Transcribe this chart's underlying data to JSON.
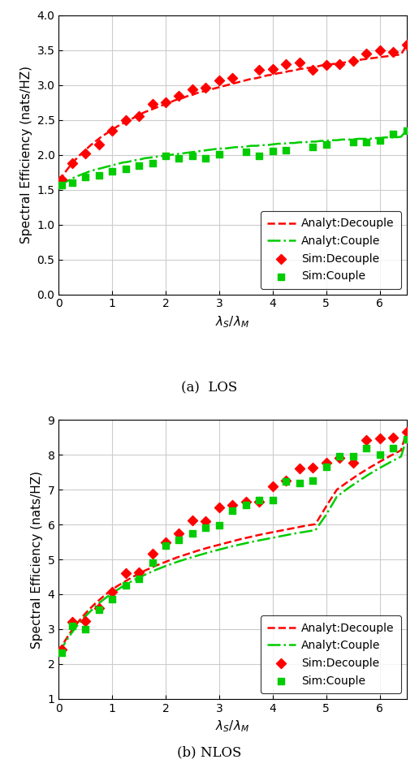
{
  "los": {
    "caption": "(a)  LOS",
    "ylabel": "Spectral Efficiency (nats/HZ)",
    "xlabel": "$\\lambda_S/\\lambda_M$",
    "ylim": [
      0,
      4
    ],
    "xlim": [
      0,
      6.5
    ],
    "yticks": [
      0,
      0.5,
      1.0,
      1.5,
      2.0,
      2.5,
      3.0,
      3.5,
      4.0
    ],
    "xticks": [
      0,
      1,
      2,
      3,
      4,
      5,
      6
    ],
    "analyt_decouple_x": [
      0.0,
      0.1,
      0.2,
      0.3,
      0.4,
      0.5,
      0.6,
      0.7,
      0.8,
      0.9,
      1.0,
      1.1,
      1.2,
      1.3,
      1.4,
      1.5,
      1.6,
      1.7,
      1.8,
      1.9,
      2.0,
      2.1,
      2.2,
      2.3,
      2.4,
      2.5,
      2.6,
      2.7,
      2.8,
      2.9,
      3.0,
      3.1,
      3.2,
      3.3,
      3.4,
      3.5,
      3.6,
      3.7,
      3.8,
      3.9,
      4.0,
      4.1,
      4.2,
      4.3,
      4.4,
      4.5,
      4.6,
      4.7,
      4.8,
      4.9,
      5.0,
      5.1,
      5.2,
      5.3,
      5.4,
      5.5,
      5.6,
      5.7,
      5.8,
      5.9,
      6.0,
      6.1,
      6.2,
      6.3,
      6.4,
      6.5
    ],
    "analyt_decouple_y": [
      1.63,
      1.73,
      1.83,
      1.92,
      2.0,
      2.07,
      2.14,
      2.2,
      2.26,
      2.31,
      2.36,
      2.41,
      2.45,
      2.49,
      2.53,
      2.57,
      2.61,
      2.64,
      2.67,
      2.7,
      2.73,
      2.76,
      2.79,
      2.81,
      2.84,
      2.86,
      2.89,
      2.91,
      2.93,
      2.95,
      2.97,
      2.99,
      3.01,
      3.03,
      3.05,
      3.07,
      3.09,
      3.1,
      3.12,
      3.14,
      3.15,
      3.17,
      3.18,
      3.2,
      3.21,
      3.23,
      3.24,
      3.25,
      3.26,
      3.28,
      3.29,
      3.3,
      3.31,
      3.32,
      3.33,
      3.35,
      3.36,
      3.37,
      3.38,
      3.39,
      3.4,
      3.41,
      3.42,
      3.43,
      3.44,
      3.57
    ],
    "analyt_couple_x": [
      0.0,
      0.1,
      0.2,
      0.3,
      0.4,
      0.5,
      0.6,
      0.7,
      0.8,
      0.9,
      1.0,
      1.1,
      1.2,
      1.3,
      1.4,
      1.5,
      1.6,
      1.7,
      1.8,
      1.9,
      2.0,
      2.1,
      2.2,
      2.3,
      2.4,
      2.5,
      2.6,
      2.7,
      2.8,
      2.9,
      3.0,
      3.1,
      3.2,
      3.3,
      3.4,
      3.5,
      3.6,
      3.7,
      3.8,
      3.9,
      4.0,
      4.1,
      4.2,
      4.3,
      4.4,
      4.5,
      4.6,
      4.7,
      4.8,
      4.9,
      5.0,
      5.1,
      5.2,
      5.3,
      5.4,
      5.5,
      5.6,
      5.7,
      5.8,
      5.9,
      6.0,
      6.1,
      6.2,
      6.3,
      6.4,
      6.5
    ],
    "analyt_couple_y": [
      1.55,
      1.6,
      1.64,
      1.68,
      1.71,
      1.74,
      1.77,
      1.79,
      1.81,
      1.83,
      1.85,
      1.87,
      1.89,
      1.9,
      1.92,
      1.93,
      1.95,
      1.96,
      1.97,
      1.98,
      1.99,
      2.0,
      2.01,
      2.02,
      2.03,
      2.04,
      2.05,
      2.06,
      2.07,
      2.08,
      2.09,
      2.09,
      2.1,
      2.11,
      2.11,
      2.12,
      2.13,
      2.13,
      2.14,
      2.14,
      2.15,
      2.16,
      2.16,
      2.17,
      2.17,
      2.18,
      2.18,
      2.19,
      2.19,
      2.2,
      2.2,
      2.21,
      2.21,
      2.22,
      2.22,
      2.22,
      2.23,
      2.23,
      2.23,
      2.24,
      2.24,
      2.25,
      2.25,
      2.25,
      2.26,
      2.35
    ],
    "sim_decouple_x": [
      0.05,
      0.25,
      0.5,
      0.75,
      1.0,
      1.25,
      1.5,
      1.75,
      2.0,
      2.25,
      2.5,
      2.75,
      3.0,
      3.25,
      3.75,
      4.0,
      4.25,
      4.5,
      4.75,
      5.0,
      5.25,
      5.5,
      5.75,
      6.0,
      6.25,
      6.5
    ],
    "sim_decouple_y": [
      1.65,
      1.88,
      2.02,
      2.15,
      2.35,
      2.5,
      2.56,
      2.73,
      2.75,
      2.85,
      2.94,
      2.96,
      3.07,
      3.1,
      3.22,
      3.23,
      3.3,
      3.32,
      3.22,
      3.29,
      3.3,
      3.35,
      3.45,
      3.5,
      3.47,
      3.58
    ],
    "sim_couple_x": [
      0.05,
      0.25,
      0.5,
      0.75,
      1.0,
      1.25,
      1.5,
      1.75,
      2.0,
      2.25,
      2.5,
      2.75,
      3.0,
      3.5,
      3.75,
      4.0,
      4.25,
      4.75,
      5.0,
      5.5,
      5.75,
      6.0,
      6.25,
      6.5
    ],
    "sim_couple_y": [
      1.57,
      1.6,
      1.68,
      1.71,
      1.77,
      1.8,
      1.85,
      1.88,
      1.99,
      1.95,
      1.98,
      1.95,
      2.01,
      2.04,
      1.99,
      2.05,
      2.07,
      2.11,
      2.15,
      2.18,
      2.18,
      2.21,
      2.3,
      2.35
    ]
  },
  "nlos": {
    "caption": "(b) NLOS",
    "ylabel": "Spectral Efficiency (nats/HZ)",
    "xlabel": "$\\lambda_S/\\lambda_M$",
    "ylim": [
      1,
      9
    ],
    "xlim": [
      0,
      6.5
    ],
    "yticks": [
      1,
      2,
      3,
      4,
      5,
      6,
      7,
      8,
      9
    ],
    "xticks": [
      0,
      1,
      2,
      3,
      4,
      5,
      6
    ],
    "analyt_decouple_x": [
      0.0,
      0.1,
      0.2,
      0.3,
      0.4,
      0.5,
      0.6,
      0.7,
      0.8,
      0.9,
      1.0,
      1.1,
      1.2,
      1.3,
      1.4,
      1.5,
      1.6,
      1.7,
      1.8,
      1.9,
      2.0,
      2.2,
      2.4,
      2.6,
      2.8,
      3.0,
      3.2,
      3.4,
      3.6,
      3.8,
      4.0,
      4.2,
      4.4,
      4.6,
      4.8,
      5.0,
      5.2,
      5.4,
      5.6,
      5.8,
      6.0,
      6.2,
      6.4,
      6.5
    ],
    "analyt_decouple_y": [
      2.35,
      2.62,
      2.86,
      3.08,
      3.27,
      3.45,
      3.61,
      3.76,
      3.89,
      4.02,
      4.13,
      4.24,
      4.33,
      4.42,
      4.51,
      4.59,
      4.67,
      4.74,
      4.81,
      4.87,
      4.93,
      5.05,
      5.15,
      5.25,
      5.34,
      5.42,
      5.5,
      5.58,
      5.65,
      5.72,
      5.78,
      5.84,
      5.9,
      5.96,
      6.01,
      6.52,
      7.0,
      7.22,
      7.43,
      7.62,
      7.8,
      7.97,
      8.13,
      8.65
    ],
    "analyt_couple_x": [
      0.0,
      0.1,
      0.2,
      0.3,
      0.4,
      0.5,
      0.6,
      0.7,
      0.8,
      0.9,
      1.0,
      1.1,
      1.2,
      1.3,
      1.4,
      1.5,
      1.6,
      1.7,
      1.8,
      1.9,
      2.0,
      2.2,
      2.4,
      2.6,
      2.8,
      3.0,
      3.2,
      3.4,
      3.6,
      3.8,
      4.0,
      4.2,
      4.4,
      4.6,
      4.8,
      5.0,
      5.2,
      5.4,
      5.6,
      5.8,
      6.0,
      6.2,
      6.4,
      6.5
    ],
    "analyt_couple_y": [
      2.3,
      2.56,
      2.8,
      3.01,
      3.2,
      3.37,
      3.52,
      3.67,
      3.8,
      3.92,
      4.03,
      4.13,
      4.23,
      4.32,
      4.4,
      4.48,
      4.55,
      4.62,
      4.69,
      4.75,
      4.81,
      4.92,
      5.02,
      5.11,
      5.2,
      5.28,
      5.36,
      5.43,
      5.5,
      5.56,
      5.62,
      5.68,
      5.74,
      5.79,
      5.84,
      6.28,
      6.8,
      7.03,
      7.24,
      7.44,
      7.62,
      7.79,
      7.95,
      8.45
    ],
    "sim_decouple_x": [
      0.05,
      0.25,
      0.5,
      0.75,
      1.0,
      1.25,
      1.5,
      1.75,
      2.0,
      2.25,
      2.5,
      2.75,
      3.0,
      3.25,
      3.5,
      3.75,
      4.0,
      4.25,
      4.5,
      4.75,
      5.0,
      5.25,
      5.5,
      5.75,
      6.0,
      6.25,
      6.5
    ],
    "sim_decouple_y": [
      2.42,
      3.2,
      3.24,
      3.6,
      4.06,
      4.6,
      4.63,
      5.17,
      5.5,
      5.75,
      6.12,
      6.1,
      6.48,
      6.55,
      6.65,
      6.65,
      7.1,
      7.25,
      7.61,
      7.63,
      7.76,
      7.9,
      7.77,
      8.43,
      8.47,
      8.5,
      8.65
    ],
    "sim_couple_x": [
      0.05,
      0.25,
      0.5,
      0.75,
      1.0,
      1.25,
      1.5,
      1.75,
      2.0,
      2.25,
      2.5,
      2.75,
      3.0,
      3.25,
      3.5,
      3.75,
      4.0,
      4.25,
      4.5,
      4.75,
      5.0,
      5.25,
      5.5,
      5.75,
      6.0,
      6.25,
      6.5
    ],
    "sim_couple_y": [
      2.33,
      3.1,
      3.0,
      3.55,
      3.85,
      4.25,
      4.45,
      4.9,
      5.4,
      5.55,
      5.75,
      5.9,
      5.98,
      6.4,
      6.55,
      6.7,
      6.7,
      7.23,
      7.2,
      7.27,
      7.65,
      7.95,
      7.95,
      8.2,
      8.0,
      8.18,
      8.45
    ]
  },
  "red_color": "#FF0000",
  "green_color": "#00CC00",
  "grid_color": "#cccccc",
  "legend_fontsize": 10,
  "axis_fontsize": 11,
  "tick_fontsize": 10,
  "caption_fontsize": 12
}
